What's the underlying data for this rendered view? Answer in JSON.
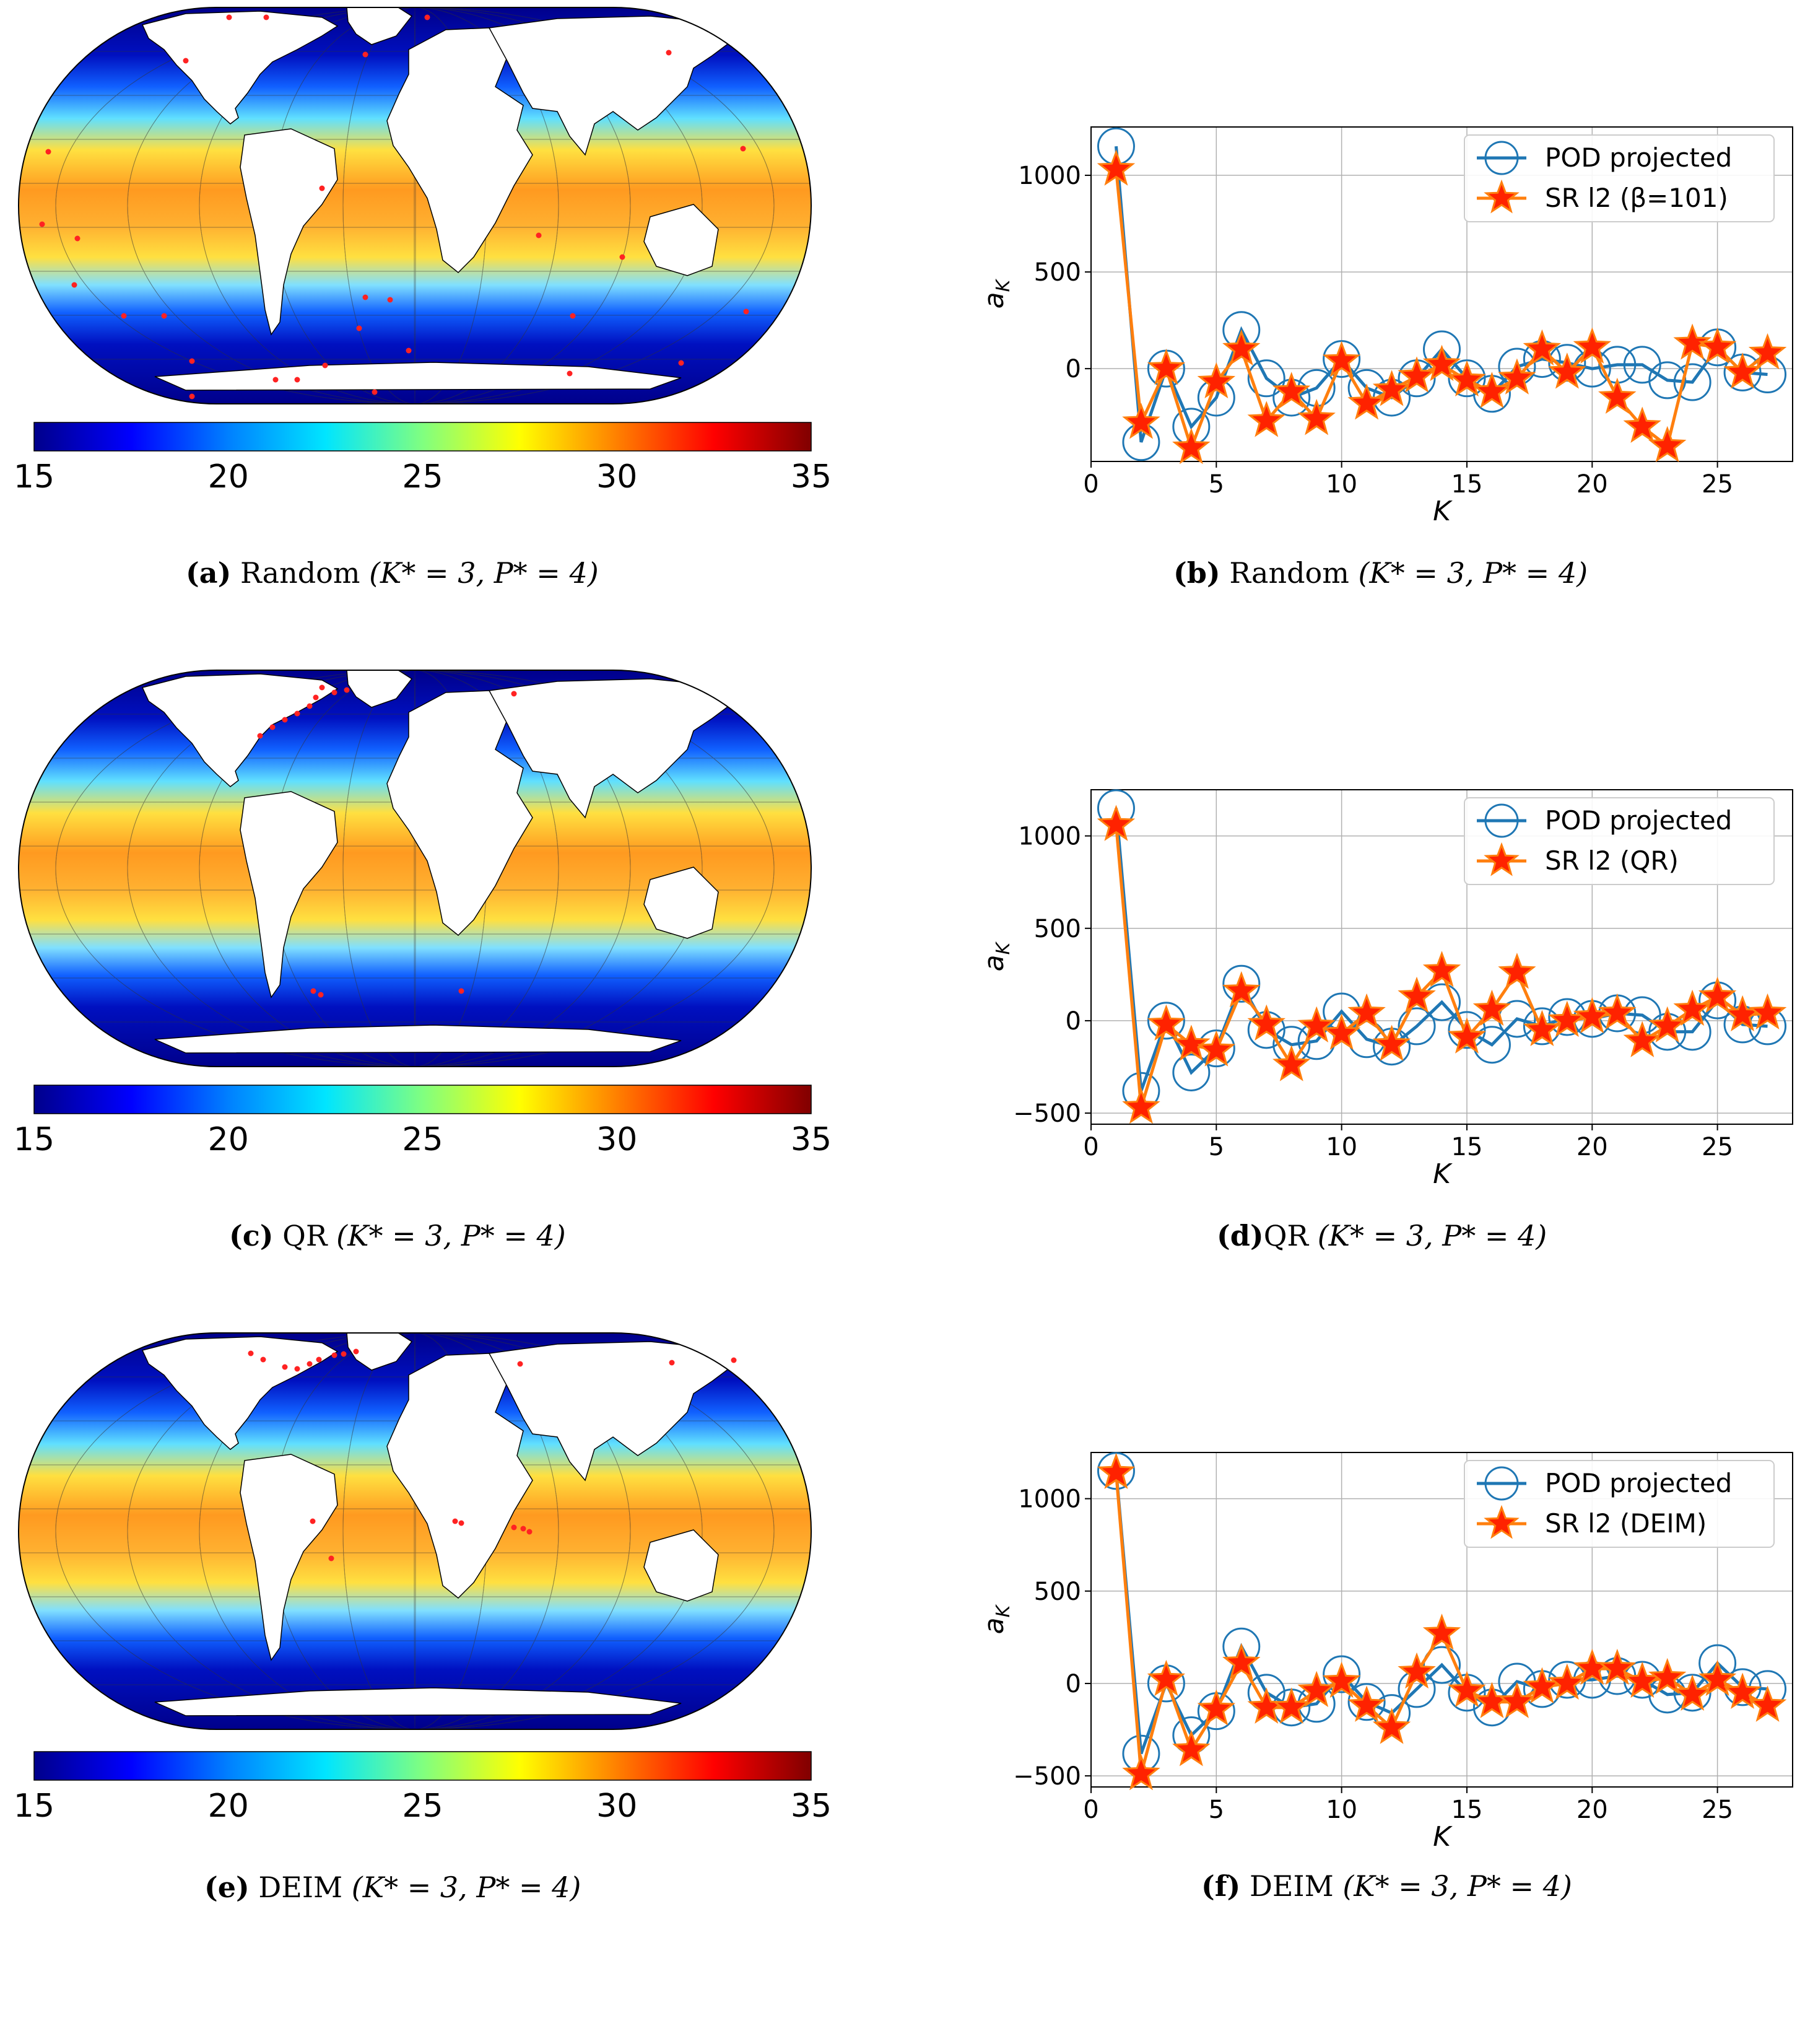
{
  "colors": {
    "ocean_dark": "#00008b",
    "land": "#ffffff",
    "sensor": "#ff2222",
    "pod_line": "#1f77b4",
    "sr_line": "#ff7f0e",
    "star_fill": "#ff2200",
    "grid": "#b0b0b0"
  },
  "colorbar": {
    "ticks": [
      "15",
      "20",
      "25",
      "30",
      "35"
    ],
    "stops": [
      "#00008b",
      "#0000ff",
      "#0080ff",
      "#00e5ff",
      "#80ff80",
      "#ffff00",
      "#ff8000",
      "#ff0000",
      "#800000"
    ]
  },
  "captions": {
    "a": {
      "letter": "(a)",
      "method": "Random",
      "params": "(K* = 3, P* = 4)"
    },
    "b": {
      "letter": "(b)",
      "method": "Random",
      "params": "(K* = 3, P* = 4)"
    },
    "c": {
      "letter": "(c)",
      "method": "QR",
      "params": "(K* = 3, P* = 4)"
    },
    "d": {
      "letter": "(d)",
      "method": "QR",
      "params": "(K* = 3, P* = 4)"
    },
    "e": {
      "letter": "(e)",
      "method": "DEIM",
      "params": "(K* = 3, P* = 4)"
    },
    "f": {
      "letter": "(f)",
      "method": "DEIM",
      "params": "(K* = 3, P* = 4)"
    }
  },
  "chart_data": [
    {
      "type": "line",
      "id": "b",
      "xlabel": "K",
      "ylabel": "a_K",
      "xlim": [
        0,
        28
      ],
      "ylim": [
        -480,
        1250
      ],
      "xticks": [
        0,
        5,
        10,
        15,
        20,
        25
      ],
      "yticks": [
        0,
        500,
        1000
      ],
      "legend_position": "top-right",
      "x": [
        1,
        2,
        3,
        4,
        5,
        6,
        7,
        8,
        9,
        10,
        11,
        12,
        13,
        14,
        15,
        16,
        17,
        18,
        19,
        20,
        21,
        22,
        23,
        24,
        25,
        26,
        27
      ],
      "series": [
        {
          "name": "POD projected",
          "values": [
            1150,
            -380,
            0,
            -300,
            -150,
            200,
            -50,
            -150,
            -100,
            50,
            -100,
            -150,
            -50,
            100,
            -50,
            -130,
            10,
            50,
            30,
            0,
            20,
            20,
            -60,
            -70,
            110,
            -20,
            -30
          ]
        },
        {
          "name": "SR l2 (β=101)",
          "values": [
            1030,
            -280,
            0,
            -410,
            -70,
            100,
            -270,
            -120,
            -260,
            40,
            -180,
            -110,
            -40,
            20,
            -60,
            -120,
            -50,
            100,
            -20,
            110,
            -150,
            -300,
            -400,
            130,
            110,
            -20,
            80
          ]
        }
      ]
    },
    {
      "type": "line",
      "id": "d",
      "xlabel": "K",
      "ylabel": "a_K",
      "xlim": [
        0,
        28
      ],
      "ylim": [
        -560,
        1250
      ],
      "xticks": [
        0,
        5,
        10,
        15,
        20,
        25
      ],
      "yticks": [
        -500,
        0,
        500,
        1000
      ],
      "legend_position": "top-right",
      "x": [
        1,
        2,
        3,
        4,
        5,
        6,
        7,
        8,
        9,
        10,
        11,
        12,
        13,
        14,
        15,
        16,
        17,
        18,
        19,
        20,
        21,
        22,
        23,
        24,
        25,
        26,
        27
      ],
      "series": [
        {
          "name": "POD projected",
          "values": [
            1150,
            -380,
            0,
            -280,
            -150,
            200,
            -50,
            -130,
            -110,
            50,
            -100,
            -140,
            -30,
            100,
            -50,
            -130,
            10,
            -30,
            20,
            10,
            40,
            30,
            -60,
            -60,
            110,
            -20,
            -30
          ]
        },
        {
          "name": "SR l2 (QR)",
          "values": [
            1060,
            -470,
            -20,
            -130,
            -160,
            160,
            -20,
            -240,
            -30,
            -70,
            40,
            -130,
            130,
            270,
            -90,
            60,
            260,
            -50,
            0,
            20,
            40,
            -110,
            -30,
            60,
            130,
            30,
            40
          ]
        }
      ]
    },
    {
      "type": "line",
      "id": "f",
      "xlabel": "K",
      "ylabel": "a_K",
      "xlim": [
        0,
        28
      ],
      "ylim": [
        -560,
        1250
      ],
      "xticks": [
        0,
        5,
        10,
        15,
        20,
        25
      ],
      "yticks": [
        -500,
        0,
        500,
        1000
      ],
      "legend_position": "top-right",
      "x": [
        1,
        2,
        3,
        4,
        5,
        6,
        7,
        8,
        9,
        10,
        11,
        12,
        13,
        14,
        15,
        16,
        17,
        18,
        19,
        20,
        21,
        22,
        23,
        24,
        25,
        26,
        27
      ],
      "series": [
        {
          "name": "POD projected",
          "values": [
            1150,
            -380,
            0,
            -280,
            -150,
            200,
            -50,
            -130,
            -110,
            50,
            -100,
            -160,
            -30,
            100,
            -50,
            -130,
            10,
            -30,
            20,
            20,
            40,
            20,
            -60,
            -50,
            110,
            -20,
            -30
          ]
        },
        {
          "name": "SR l2 (DEIM)",
          "values": [
            1140,
            -490,
            20,
            -360,
            -140,
            110,
            -130,
            -130,
            -40,
            10,
            -120,
            -240,
            60,
            270,
            -40,
            -100,
            -100,
            -20,
            0,
            80,
            80,
            10,
            30,
            -60,
            20,
            -50,
            -120
          ]
        }
      ]
    }
  ]
}
